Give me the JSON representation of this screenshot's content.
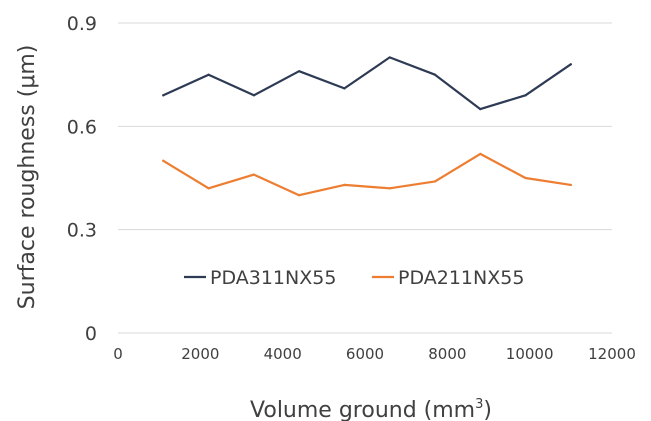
{
  "chart_data": {
    "type": "line",
    "title": "",
    "xlabel": "Volume ground (mm",
    "xlabel_sup": "3",
    "xlabel_end": ")",
    "ylabel": "Surface roughness (μm)",
    "xlim": [
      0,
      12000
    ],
    "ylim": [
      0,
      0.9
    ],
    "x_ticks": [
      0,
      2000,
      4000,
      6000,
      8000,
      10000,
      12000
    ],
    "x_tick_labels": [
      "0",
      "2000",
      "4000",
      "6000",
      "8000",
      "10000",
      "12000"
    ],
    "y_ticks": [
      0,
      0.3,
      0.6,
      0.9
    ],
    "y_tick_labels": [
      "0",
      "0.3",
      "0.6",
      "0.9"
    ],
    "grid": "horizontal",
    "legend_position": "lower-center inside",
    "x": [
      1100,
      2200,
      3300,
      4400,
      5500,
      6600,
      7700,
      8800,
      9900,
      11000
    ],
    "series": [
      {
        "name": "PDA311NX55",
        "color": "#2e3b55",
        "values": [
          0.69,
          0.75,
          0.69,
          0.76,
          0.71,
          0.8,
          0.75,
          0.65,
          0.69,
          0.78
        ]
      },
      {
        "name": "PDA211NX55",
        "color": "#ed7d31",
        "values": [
          0.5,
          0.42,
          0.46,
          0.4,
          0.43,
          0.42,
          0.44,
          0.52,
          0.45,
          0.43
        ]
      }
    ]
  }
}
